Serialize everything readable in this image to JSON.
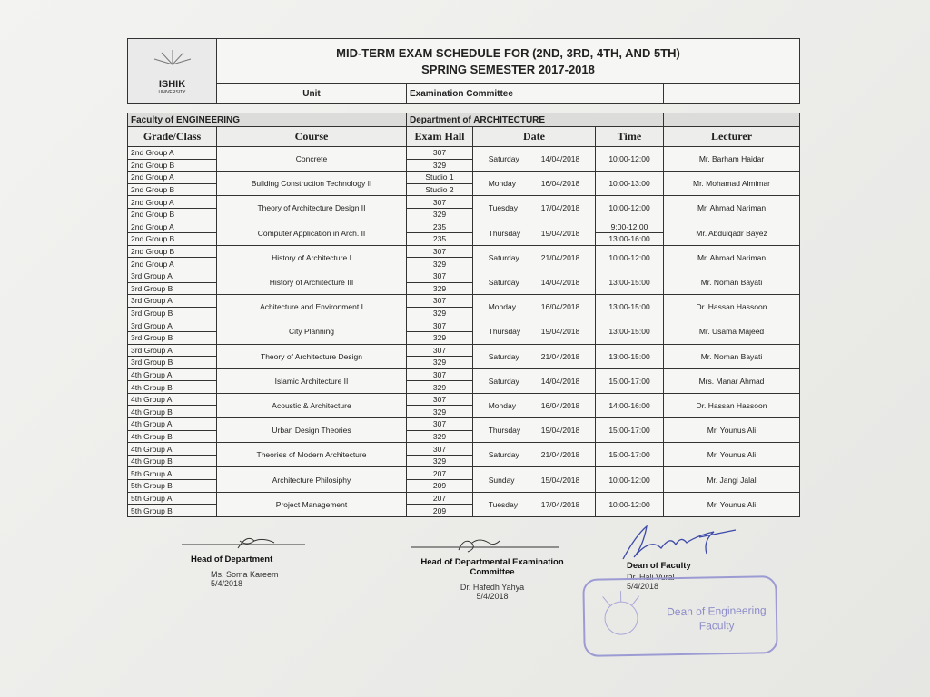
{
  "header": {
    "logo": "ISHIK",
    "logo_sub": "UNIVERSITY",
    "title": "MID-TERM EXAM SCHEDULE FOR (2ND, 3RD, 4TH, AND 5TH)",
    "subtitle": "SPRING SEMESTER 2017-2018",
    "unit_label": "Unit",
    "unit": "Examination Committee",
    "faculty": "Faculty of ENGINEERING",
    "department": "Department of ARCHITECTURE"
  },
  "columns": [
    "Grade/Class",
    "Course",
    "Exam Hall",
    "Date",
    "Time",
    "Lecturer"
  ],
  "exams": [
    {
      "groups": [
        "2nd Group A",
        "2nd Group B"
      ],
      "course": "Concrete",
      "halls": [
        "307",
        "329"
      ],
      "day": "Saturday",
      "date": "14/04/2018",
      "times": [
        "10:00-12:00"
      ],
      "lecturer": "Mr. Barham Haidar"
    },
    {
      "groups": [
        "2nd Group A",
        "2nd Group B"
      ],
      "course": "Building Construction Technology II",
      "halls": [
        "Studio 1",
        "Studio 2"
      ],
      "day": "Monday",
      "date": "16/04/2018",
      "times": [
        "10:00-13:00"
      ],
      "lecturer": "Mr. Mohamad Almimar"
    },
    {
      "groups": [
        "2nd Group A",
        "2nd Group B"
      ],
      "course": "Theory of Architecture Design II",
      "halls": [
        "307",
        "329"
      ],
      "day": "Tuesday",
      "date": "17/04/2018",
      "times": [
        "10:00-12:00"
      ],
      "lecturer": "Mr. Ahmad Nariman"
    },
    {
      "groups": [
        "2nd Group A",
        "2nd Group B"
      ],
      "course": "Computer Application in Arch. II",
      "halls": [
        "235",
        "235"
      ],
      "day": "Thursday",
      "date": "19/04/2018",
      "times": [
        "9:00-12:00",
        "13:00-16:00"
      ],
      "lecturer": "Mr. Abdulqadr Bayez"
    },
    {
      "groups": [
        "2nd Group B",
        "2nd Group A"
      ],
      "course": "History of Architecture I",
      "halls": [
        "307",
        "329"
      ],
      "day": "Saturday",
      "date": "21/04/2018",
      "times": [
        "10:00-12:00"
      ],
      "lecturer": "Mr. Ahmad Nariman"
    },
    {
      "groups": [
        "3rd Group A",
        "3rd Group B"
      ],
      "course": "History of Architecture III",
      "halls": [
        "307",
        "329"
      ],
      "day": "Saturday",
      "date": "14/04/2018",
      "times": [
        "13:00-15:00"
      ],
      "lecturer": "Mr. Noman Bayati"
    },
    {
      "groups": [
        "3rd Group A",
        "3rd Group B"
      ],
      "course": "Achitecture and Environment I",
      "halls": [
        "307",
        "329"
      ],
      "day": "Monday",
      "date": "16/04/2018",
      "times": [
        "13:00-15:00"
      ],
      "lecturer": "Dr. Hassan Hassoon"
    },
    {
      "groups": [
        "3rd Group A",
        "3rd Group B"
      ],
      "course": "City Planning",
      "halls": [
        "307",
        "329"
      ],
      "day": "Thursday",
      "date": "19/04/2018",
      "times": [
        "13:00-15:00"
      ],
      "lecturer": "Mr. Usama Majeed"
    },
    {
      "groups": [
        "3rd Group A",
        "3rd Group B"
      ],
      "course": "Theory of Architecture Design",
      "halls": [
        "307",
        "329"
      ],
      "day": "Saturday",
      "date": "21/04/2018",
      "times": [
        "13:00-15:00"
      ],
      "lecturer": "Mr. Noman Bayati"
    },
    {
      "groups": [
        "4th Group A",
        "4th Group B"
      ],
      "course": "Islamic Architecture II",
      "halls": [
        "307",
        "329"
      ],
      "day": "Saturday",
      "date": "14/04/2018",
      "times": [
        "15:00-17:00"
      ],
      "lecturer": "Mrs. Manar Ahmad"
    },
    {
      "groups": [
        "4th Group A",
        "4th Group B"
      ],
      "course": "Acoustic & Architecture",
      "halls": [
        "307",
        "329"
      ],
      "day": "Monday",
      "date": "16/04/2018",
      "times": [
        "14:00-16:00"
      ],
      "lecturer": "Dr. Hassan Hassoon"
    },
    {
      "groups": [
        "4th Group A",
        "4th Group B"
      ],
      "course": "Urban Design Theories",
      "halls": [
        "307",
        "329"
      ],
      "day": "Thursday",
      "date": "19/04/2018",
      "times": [
        "15:00-17:00"
      ],
      "lecturer": "Mr. Younus Ali"
    },
    {
      "groups": [
        "4th Group A",
        "4th Group B"
      ],
      "course": "Theories of Modern Architecture",
      "halls": [
        "307",
        "329"
      ],
      "day": "Saturday",
      "date": "21/04/2018",
      "times": [
        "15:00-17:00"
      ],
      "lecturer": "Mr. Younus Ali"
    },
    {
      "groups": [
        "5th Group A",
        "5th Group B"
      ],
      "course": "Architecture Philosiphy",
      "halls": [
        "207",
        "209"
      ],
      "day": "Sunday",
      "date": "15/04/2018",
      "times": [
        "10:00-12:00"
      ],
      "lecturer": "Mr. Jangi Jalal"
    },
    {
      "groups": [
        "5th Group A",
        "5th Group B"
      ],
      "course": "Project Management",
      "halls": [
        "207",
        "209"
      ],
      "day": "Tuesday",
      "date": "17/04/2018",
      "times": [
        "10:00-12:00"
      ],
      "lecturer": "Mr. Younus Ali"
    }
  ],
  "signatures": [
    {
      "role": "Head of Department",
      "name": "Ms. Soma Kareem",
      "date": "5/4/2018"
    },
    {
      "role": "Head of Departmental Examination Committee",
      "name": "Dr. Hafedh Yahya",
      "date": "5/4/2018"
    },
    {
      "role": "Dean of Faculty",
      "name": "Dr. Hali Vural",
      "date": "5/4/2018"
    }
  ],
  "stamp": "Dean of Engineering Faculty"
}
